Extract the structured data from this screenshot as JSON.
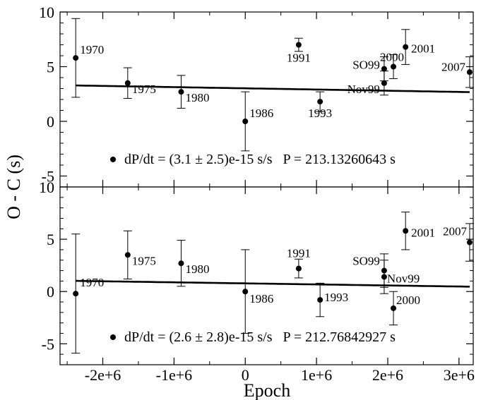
{
  "chart_data": {
    "type": "scatter",
    "xlabel": "Epoch",
    "ylabel": "O - C (s)",
    "xlim": [
      -2600000,
      3200000
    ],
    "x_ticks": [
      -2000000,
      -1000000,
      0,
      1000000,
      2000000,
      3000000
    ],
    "x_tick_labels": [
      "-2e+6",
      "-1e+6",
      "0",
      "1e+6",
      "2e+6",
      "3e+6"
    ],
    "grid": false,
    "panels": [
      {
        "ylim": [
          -6,
          10
        ],
        "y_ticks": [
          -5,
          0,
          5,
          10
        ],
        "y_tick_labels": [
          "-5",
          "0",
          "5",
          "10"
        ],
        "legend_text": "dP/dt = (3.1 ± 2.5)e-15 s/s   P = 213.13260643 s",
        "fit_curve": {
          "a": 3.02,
          "b": -1.1e-07,
          "c": 3.7e-13
        },
        "points": [
          {
            "label": "1970",
            "x": -2380000,
            "y": 5.8,
            "err": 3.6
          },
          {
            "label": "1975",
            "x": -1650000,
            "y": 3.5,
            "err": 1.4
          },
          {
            "label": "1980",
            "x": -900000,
            "y": 2.7,
            "err": 1.5
          },
          {
            "label": "1986",
            "x": 0,
            "y": 0.0,
            "err": 2.7
          },
          {
            "label": "1991",
            "x": 750000,
            "y": 7.0,
            "err": 0.6
          },
          {
            "label": "1993",
            "x": 1050000,
            "y": 1.8,
            "err": 0.9
          },
          {
            "label": "SO99",
            "x": 1950000,
            "y": 4.8,
            "err": 1.1
          },
          {
            "label": "Nov99",
            "x": 1950000,
            "y": 3.5,
            "err": 1.1
          },
          {
            "label": "2000",
            "x": 2080000,
            "y": 5.0,
            "err": 1.1
          },
          {
            "label": "2001",
            "x": 2250000,
            "y": 6.8,
            "err": 1.6
          },
          {
            "label": "2007",
            "x": 3150000,
            "y": 4.5,
            "err": 1.4
          }
        ]
      },
      {
        "ylim": [
          -7,
          10
        ],
        "y_ticks": [
          -5,
          0,
          5,
          10
        ],
        "y_tick_labels": [
          "-5",
          "0",
          "5",
          "10"
        ],
        "legend_text": "dP/dt = (2.6 ± 2.8)e-15 s/s   P = 212.76842927 s",
        "fit_curve": {
          "a": 0.78,
          "b": -1e-07,
          "c": 3e-13
        },
        "points": [
          {
            "label": "1970",
            "x": -2380000,
            "y": -0.2,
            "err": 5.7
          },
          {
            "label": "1975",
            "x": -1650000,
            "y": 3.5,
            "err": 2.3
          },
          {
            "label": "1980",
            "x": -900000,
            "y": 2.7,
            "err": 2.2
          },
          {
            "label": "1986",
            "x": 0,
            "y": 0.0,
            "err": 4.0
          },
          {
            "label": "1991",
            "x": 750000,
            "y": 2.2,
            "err": 0.9
          },
          {
            "label": "1993",
            "x": 1050000,
            "y": -0.8,
            "err": 1.6
          },
          {
            "label": "SO99",
            "x": 1950000,
            "y": 2.0,
            "err": 1.6
          },
          {
            "label": "Nov99",
            "x": 1950000,
            "y": 1.4,
            "err": 1.6
          },
          {
            "label": "2000",
            "x": 2080000,
            "y": -1.6,
            "err": 1.6
          },
          {
            "label": "2001",
            "x": 2250000,
            "y": 5.8,
            "err": 1.8
          },
          {
            "label": "2007",
            "x": 3150000,
            "y": 4.7,
            "err": 1.8
          }
        ]
      }
    ]
  }
}
